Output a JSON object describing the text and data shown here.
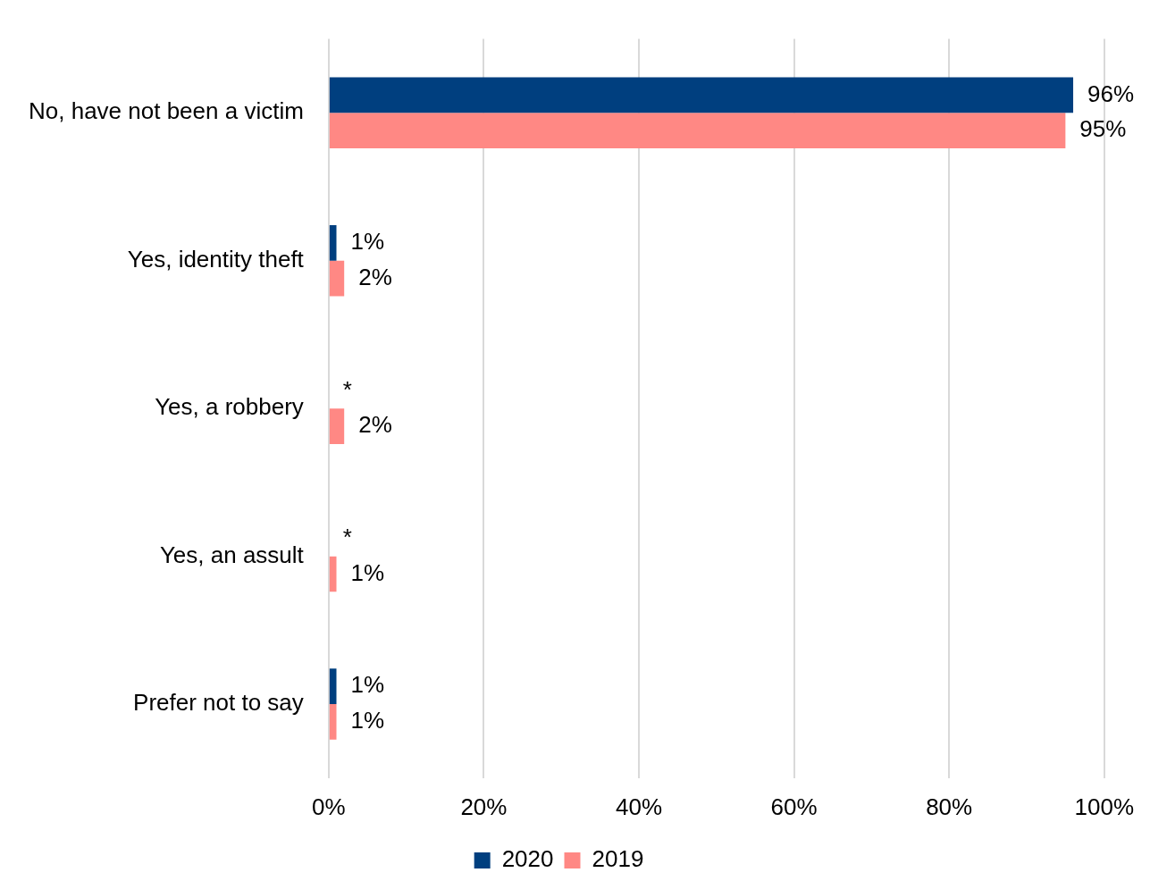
{
  "chart_data": {
    "type": "bar",
    "orientation": "horizontal",
    "categories": [
      "No, have not been a victim",
      "Yes, identity theft",
      "Yes, a robbery",
      "Yes, an assult",
      "Prefer not to say"
    ],
    "series": [
      {
        "name": "2020",
        "color": "#003f7f",
        "values": [
          96,
          1,
          0,
          0,
          1
        ],
        "value_labels": [
          "96%",
          "1%",
          "*",
          "*",
          "1%"
        ]
      },
      {
        "name": "2019",
        "color": "#ff8884",
        "values": [
          95,
          2,
          2,
          1,
          1
        ],
        "value_labels": [
          "95%",
          "2%",
          "2%",
          "1%",
          "1%"
        ]
      }
    ],
    "xlim": [
      0,
      100
    ],
    "xticks": [
      {
        "value": 0,
        "label": "0%"
      },
      {
        "value": 20,
        "label": "20%"
      },
      {
        "value": 40,
        "label": "40%"
      },
      {
        "value": 60,
        "label": "60%"
      },
      {
        "value": 80,
        "label": "80%"
      },
      {
        "value": 100,
        "label": "100%"
      }
    ],
    "grid": "x",
    "legend": "bottom"
  }
}
